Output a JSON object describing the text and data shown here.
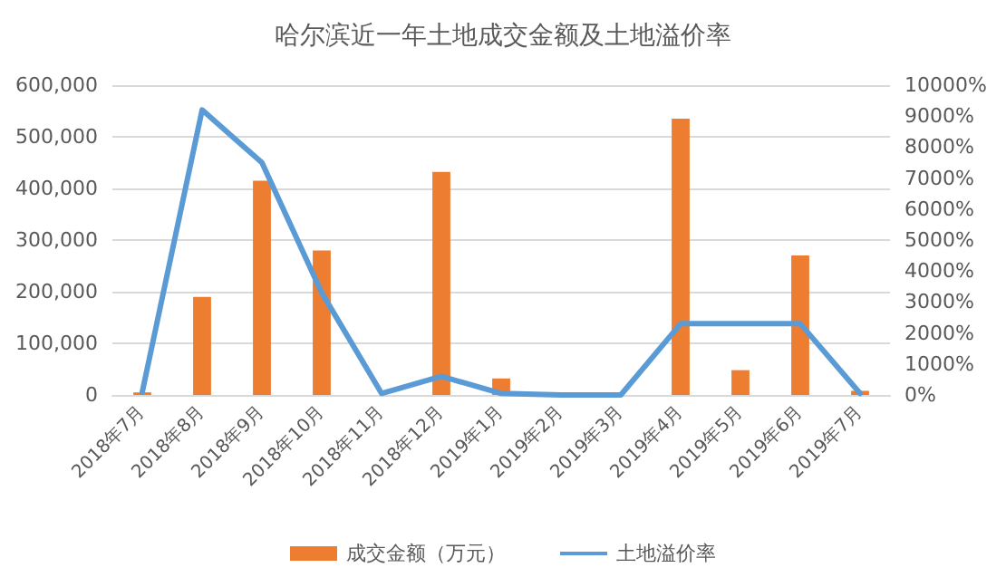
{
  "chart_data": {
    "type": "bar",
    "title": "哈尔滨近一年土地成交金额及土地溢价率",
    "categories": [
      "2018年7月",
      "2018年8月",
      "2018年9月",
      "2018年10月",
      "2018年11月",
      "2018年12月",
      "2019年1月",
      "2019年2月",
      "2019年3月",
      "2019年4月",
      "2019年5月",
      "2019年6月",
      "2019年7月"
    ],
    "series": [
      {
        "name": "成交金额（万元）",
        "color": "#ed7d31",
        "values": [
          5000,
          190000,
          415000,
          280000,
          0,
          432000,
          32000,
          0,
          0,
          535000,
          48000,
          270000,
          8000
        ]
      },
      {
        "name": "土地溢价率",
        "type": "line",
        "axis": "y2",
        "color": "#5b9bd5",
        "values": [
          100,
          9200,
          7500,
          3300,
          50,
          600,
          50,
          0,
          0,
          2300,
          2300,
          2300,
          50
        ]
      }
    ],
    "ylim": [
      0,
      600000
    ],
    "yticks": [
      {
        "value": 0,
        "label": "0"
      },
      {
        "value": 100000,
        "label": "100,000"
      },
      {
        "value": 200000,
        "label": "200,000"
      },
      {
        "value": 300000,
        "label": "300,000"
      },
      {
        "value": 400000,
        "label": "400,000"
      },
      {
        "value": 500000,
        "label": "500,000"
      },
      {
        "value": 600000,
        "label": "600,000"
      }
    ],
    "y2lim": [
      0,
      10000
    ],
    "y2ticks": [
      {
        "value": 0,
        "label": "0%"
      },
      {
        "value": 1000,
        "label": "1000%"
      },
      {
        "value": 2000,
        "label": "2000%"
      },
      {
        "value": 3000,
        "label": "3000%"
      },
      {
        "value": 4000,
        "label": "4000%"
      },
      {
        "value": 5000,
        "label": "5000%"
      },
      {
        "value": 6000,
        "label": "6000%"
      },
      {
        "value": 7000,
        "label": "7000%"
      },
      {
        "value": 8000,
        "label": "8000%"
      },
      {
        "value": 9000,
        "label": "9000%"
      },
      {
        "value": 10000,
        "label": "10000%"
      }
    ],
    "grid": "y",
    "legend": "bottom",
    "marker": "none",
    "line_style": "solid"
  }
}
